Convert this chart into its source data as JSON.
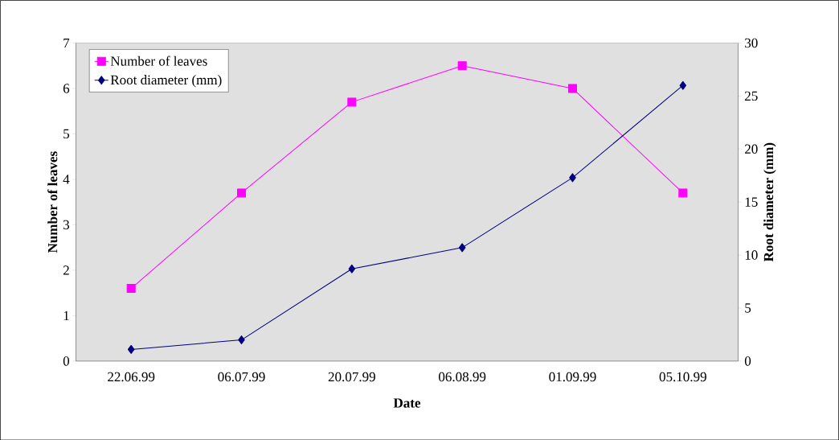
{
  "chart_data": {
    "type": "line",
    "xlabel": "Date",
    "ylabel": "Number of leaves",
    "y2label": "Root diameter (mm)",
    "categories": [
      "22.06.99",
      "06.07.99",
      "20.07.99",
      "06.08.99",
      "01.09.99",
      "05.10.99"
    ],
    "series": [
      {
        "name": "Number of leaves",
        "color": "#ff00ff",
        "marker": "square",
        "values": [
          1.6,
          3.7,
          5.7,
          6.5,
          6.0,
          3.7
        ]
      },
      {
        "name": "Root diameter (mm)",
        "color": "#000080",
        "marker": "diamond",
        "axis": "y2",
        "values": [
          1.1,
          2.0,
          8.7,
          10.7,
          17.3,
          26.0
        ]
      }
    ],
    "ylim": [
      0,
      7
    ],
    "yticks": [
      0,
      1,
      2,
      3,
      4,
      5,
      6,
      7
    ],
    "y2lim": [
      0,
      30
    ],
    "y2ticks": [
      0,
      5,
      10,
      15,
      20,
      25,
      30
    ],
    "legend": "top left"
  }
}
